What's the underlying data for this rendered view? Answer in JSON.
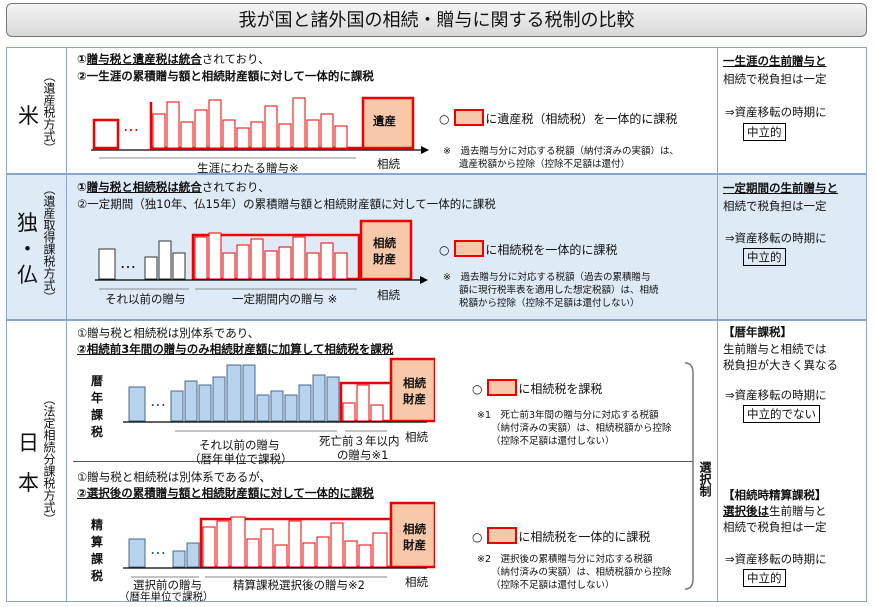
{
  "title": "我が国と諸外国の相続・贈与に関する税制の比較",
  "rows": {
    "us": {
      "country": "米",
      "system": "（遺産税方式）",
      "line1_a": "①",
      "line1_b": "贈与税と遺産税は統合",
      "line1_c": "されており、",
      "line2": "②一生涯の累積贈与額と相続財産額に対して一体的に課税",
      "estate_label": "遺産",
      "dots": "…",
      "span_label": "生涯にわたる贈与※",
      "axis_label": "相続",
      "legend_pre": "○",
      "legend_post": "に遺産税（相続税）を一体的に課税",
      "note": "※　過去贈与分に対応する税額（納付済みの実額）は、",
      "note2": "遺産税額から控除（控除不足額は還付）",
      "right1": "一生涯の生前贈与と",
      "right2": "相続で税負担は一定",
      "right3": "⇒資産移転の時期に",
      "right4": "中立的"
    },
    "de_fr": {
      "country1": "独",
      "country_dot": "・",
      "country2": "仏",
      "system": "（遺産取得課税方式）",
      "line1_a": "①",
      "line1_b": "贈与税と相続税は統合",
      "line1_c": "されており、",
      "line2": "②一定期間（独10年、仏15年）の累積贈与額と相続財産額に対して一体的に課税",
      "estate_label1": "相続",
      "estate_label2": "財産",
      "dots": "…",
      "before_label": "それ以前の贈与",
      "span_label": "一定期間内の贈与 ※",
      "axis_label": "相続",
      "legend_pre": "○",
      "legend_post": "に相続税を一体的に課税",
      "note1": "※　過去贈与分に対応する税額（過去の累積贈与",
      "note2": "額に現行税率表を適用した想定税額）は、相続",
      "note3": "税額から控除（控除不足額は還付しない）",
      "right1": "一定期間の生前贈与と",
      "right2": "相続で税負担は一定",
      "right3": "⇒資産移転の時期に",
      "right4": "中立的"
    },
    "jp": {
      "country1": "日",
      "country2": "本",
      "system": "（法定相続分課税方式）",
      "select_label": "選択制",
      "a": {
        "line1": "①贈与税と相続税は別体系であり、",
        "line2": "②相続前3年間の贈与のみ相続財産額に加算して相続税を課税",
        "side_label": "暦年課税",
        "estate_label1": "相続",
        "estate_label2": "財産",
        "dots": "…",
        "before_label1": "それ以前の贈与",
        "before_label2": "（暦年単位で課税）",
        "span_label1": "死亡前３年以内",
        "span_label2": "の贈与※1",
        "axis_label": "相続",
        "legend_pre": "○",
        "legend_post": "に相続税を課税",
        "note1": "※1　死亡前3年間の贈与分に対応する税額",
        "note2": "（納付済みの実額）は、相続税額から控除",
        "note3": "（控除不足額は還付しない）",
        "right_head": "【暦年課税】",
        "right1": "生前贈与と相続では",
        "right2": "税負担が大きく異なる",
        "right3": "⇒資産移転の時期に",
        "right4": "中立的でない"
      },
      "b": {
        "line1": "①贈与税と相続税は別体系であるが、",
        "line2": "②選択後の累積贈与額と相続財産額に対して一体的に課税",
        "side_label": "精算課税",
        "estate_label1": "相続",
        "estate_label2": "財産",
        "dots": "…",
        "before_label1": "選択前の贈与",
        "before_label2": "（暦年単位で課税）",
        "span_label": "精算課税選択後の贈与※2",
        "axis_label": "相続",
        "legend_pre": "○",
        "legend_post": "に相続税を一体的に課税",
        "note1": "※2　選択後の累積贈与分に対応する税額",
        "note2": "（納付済みの実額）は、相続税額から控除",
        "note3": "（控除不足額は還付しない）",
        "right_head": "【相続時精算課税】",
        "right1_a": "選択後は",
        "right1_b": "生前贈与と",
        "right2": "相続で税負担は一定",
        "right3": "⇒資産移転の時期に",
        "right4": "中立的"
      }
    }
  },
  "colors": {
    "red": "#e00000",
    "fill": "#f8c9a8",
    "blue": "#b7d3ee",
    "rowbg": "#deebf7"
  }
}
